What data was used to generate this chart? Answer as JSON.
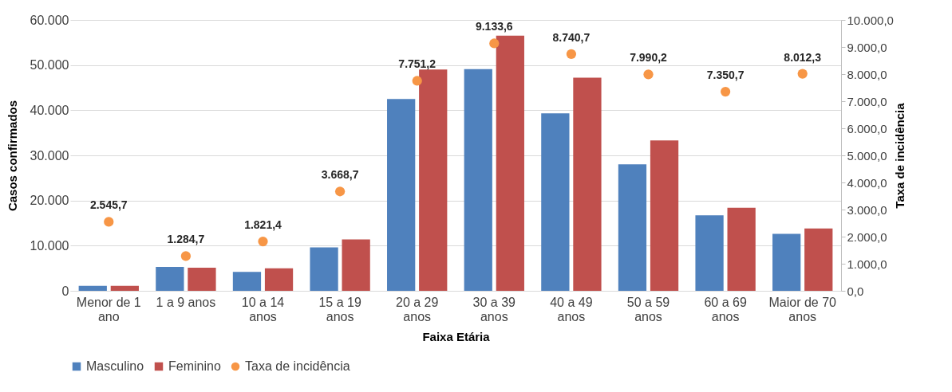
{
  "chart_data": {
    "type": "bar",
    "xlabel": "Faixa Etária",
    "ylabel": "Casos confirmados",
    "y2label": "Taxa de incidência",
    "categories": [
      "Menor de 1 ano",
      "1 a 9 anos",
      "10 a 14 anos",
      "15 a 19 anos",
      "20 a 29 anos",
      "30 a 39 anos",
      "40 a 49 anos",
      "50 a 59 anos",
      "60 a 69 anos",
      "Maior de 70 anos"
    ],
    "series": [
      {
        "name": "Masculino",
        "color": "#4f81bd",
        "values": [
          1100,
          5300,
          4200,
          9600,
          42500,
          49100,
          39300,
          28000,
          16700,
          12600
        ]
      },
      {
        "name": "Feminino",
        "color": "#c0504d",
        "values": [
          1100,
          5100,
          5000,
          11400,
          49000,
          56500,
          47200,
          33300,
          18400,
          13800
        ]
      },
      {
        "name": "Taxa de incidência",
        "type": "scatter",
        "axis": "y2",
        "color": "#f79646",
        "values": [
          2545.7,
          1284.7,
          1821.4,
          3668.7,
          7751.2,
          9133.6,
          8740.7,
          7990.2,
          7350.7,
          8012.3
        ],
        "value_labels": [
          "2.545,7",
          "1.284,7",
          "1.821,4",
          "3.668,7",
          "7.751,2",
          "9.133,6",
          "8.740,7",
          "7.990,2",
          "7.350,7",
          "8.012,3"
        ]
      }
    ],
    "ylim": [
      0,
      60000
    ],
    "yticks": [
      {
        "value": 0,
        "label": "0"
      },
      {
        "value": 10000,
        "label": "10.000"
      },
      {
        "value": 20000,
        "label": "20.000"
      },
      {
        "value": 30000,
        "label": "30.000"
      },
      {
        "value": 40000,
        "label": "40.000"
      },
      {
        "value": 50000,
        "label": "50.000"
      },
      {
        "value": 60000,
        "label": "60.000"
      }
    ],
    "y2lim": [
      0,
      10000
    ],
    "y2ticks": [
      {
        "value": 0,
        "label": "0,0"
      },
      {
        "value": 1000,
        "label": "1.000,0"
      },
      {
        "value": 2000,
        "label": "2.000,0"
      },
      {
        "value": 3000,
        "label": "3.000,0"
      },
      {
        "value": 4000,
        "label": "4.000,0"
      },
      {
        "value": 5000,
        "label": "5.000,0"
      },
      {
        "value": 6000,
        "label": "6.000,0"
      },
      {
        "value": 7000,
        "label": "7.000,0"
      },
      {
        "value": 8000,
        "label": "8.000,0"
      },
      {
        "value": 9000,
        "label": "9.000,0"
      },
      {
        "value": 10000,
        "label": "10.000,0"
      }
    ],
    "grid": "y",
    "legend": "bottom",
    "marker": "circle"
  }
}
